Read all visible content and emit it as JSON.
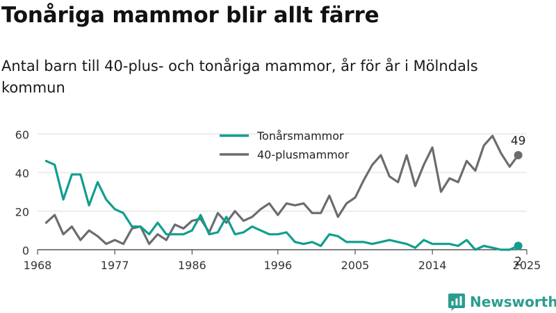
{
  "header": {
    "title": "Tonåriga mammor blir allt färre",
    "subtitle": "Antal barn till 40-plus- och tonåriga mammor, år för år i Mölndals kommun"
  },
  "brand": {
    "name": "Newsworthy",
    "color": "#2a9d8f",
    "icon": "bar-chart-logo-icon"
  },
  "chart_data": {
    "type": "line",
    "title": "",
    "xlabel": "",
    "ylabel": "",
    "x": [
      1969,
      1970,
      1971,
      1972,
      1973,
      1974,
      1975,
      1976,
      1977,
      1978,
      1979,
      1980,
      1981,
      1982,
      1983,
      1984,
      1985,
      1986,
      1987,
      1988,
      1989,
      1990,
      1991,
      1992,
      1993,
      1994,
      1995,
      1996,
      1997,
      1998,
      1999,
      2000,
      2001,
      2002,
      2003,
      2004,
      2005,
      2006,
      2007,
      2008,
      2009,
      2010,
      2011,
      2012,
      2013,
      2014,
      2015,
      2016,
      2017,
      2018,
      2019,
      2020,
      2021,
      2022,
      2023,
      2024
    ],
    "xticks": [
      1968,
      1977,
      1986,
      1996,
      2005,
      2014,
      2025
    ],
    "xlim": [
      1968,
      2025
    ],
    "yticks": [
      0,
      20,
      40,
      60
    ],
    "ylim": [
      0,
      62
    ],
    "grid": true,
    "legend_position": "top-center",
    "series": [
      {
        "name": "Tonårsmammor",
        "color": "#0f9e8e",
        "values": [
          46,
          44,
          26,
          39,
          39,
          23,
          35,
          26,
          21,
          19,
          12,
          12,
          8,
          14,
          8,
          8,
          8,
          10,
          18,
          8,
          9,
          17,
          8,
          9,
          12,
          10,
          8,
          8,
          9,
          4,
          3,
          4,
          2,
          8,
          7,
          4,
          4,
          4,
          3,
          4,
          5,
          4,
          3,
          1,
          5,
          3,
          3,
          3,
          2,
          5,
          0,
          2,
          1,
          0,
          0,
          2
        ],
        "end_label": "2"
      },
      {
        "name": "40-plusmammor",
        "color": "#6c6c70",
        "values": [
          14,
          18,
          8,
          12,
          5,
          10,
          7,
          3,
          5,
          3,
          11,
          12,
          3,
          8,
          5,
          13,
          11,
          15,
          16,
          9,
          19,
          14,
          20,
          15,
          17,
          21,
          24,
          18,
          24,
          23,
          24,
          19,
          19,
          28,
          17,
          24,
          27,
          36,
          44,
          49,
          38,
          35,
          49,
          33,
          44,
          53,
          30,
          37,
          35,
          46,
          41,
          54,
          59,
          50,
          43,
          49
        ],
        "end_label": "49"
      }
    ]
  }
}
